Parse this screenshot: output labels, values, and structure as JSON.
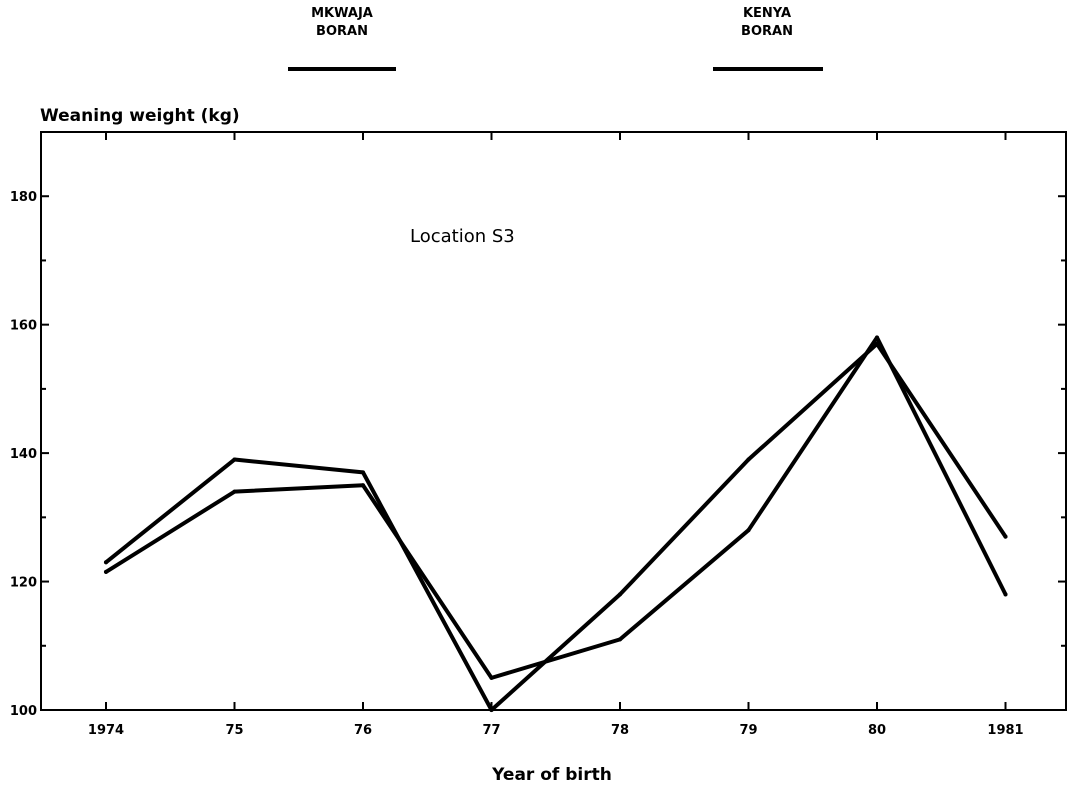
{
  "chart_data": {
    "type": "line",
    "ylabel": "Weaning weight (kg)",
    "xlabel": "Year of birth",
    "annotation": "Location S3",
    "categories": [
      "1974",
      "75",
      "76",
      "77",
      "78",
      "79",
      "80",
      "1981"
    ],
    "ylim": [
      100,
      190
    ],
    "yticks": [
      100,
      120,
      140,
      160,
      180
    ],
    "yticklabels": [
      "100",
      "120",
      "140",
      "160",
      "180"
    ],
    "grid": false,
    "legend_position": "top",
    "series": [
      {
        "name": "MKWAJA BORAN",
        "line1": "MKWAJA",
        "line2": "BORAN",
        "values": [
          123,
          139,
          137,
          100,
          118,
          139,
          157,
          127
        ]
      },
      {
        "name": "KENYA BORAN",
        "line1": "KENYA",
        "line2": "BORAN",
        "values": [
          121.5,
          134,
          135,
          105,
          111,
          128,
          158,
          118
        ]
      }
    ]
  }
}
